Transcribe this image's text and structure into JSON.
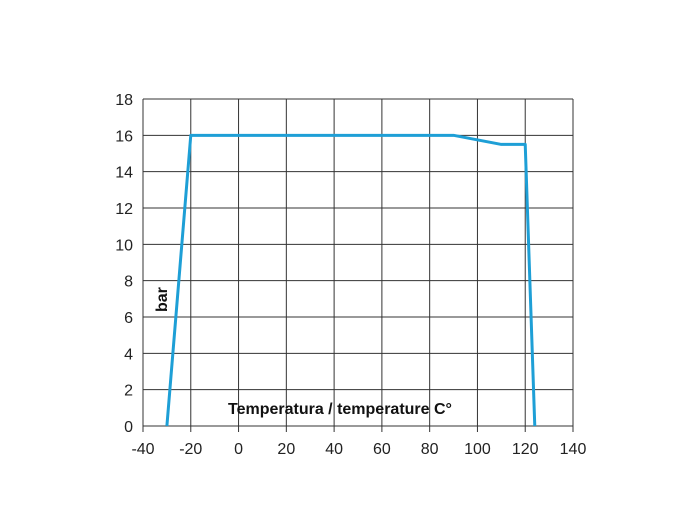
{
  "chart_data": {
    "type": "line",
    "xlabel": "Temperatura / temperature C°",
    "ylabel": "bar",
    "xlim": [
      -40,
      140
    ],
    "ylim": [
      0,
      18
    ],
    "x_ticks": [
      -40,
      -20,
      0,
      20,
      40,
      60,
      80,
      100,
      120,
      140
    ],
    "y_ticks": [
      0,
      2,
      4,
      6,
      8,
      10,
      12,
      14,
      16,
      18
    ],
    "grid": true,
    "series": [
      {
        "x": [
          -30,
          -20,
          90,
          110,
          120,
          124
        ],
        "y": [
          0,
          16,
          16,
          15.5,
          15.5,
          0
        ],
        "color": "#1e9fd6"
      }
    ],
    "grid_color": "#333333"
  }
}
